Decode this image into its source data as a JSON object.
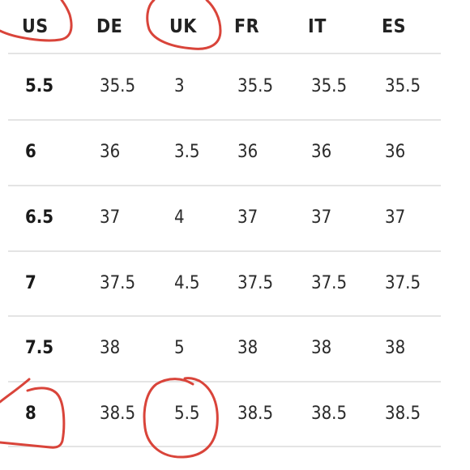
{
  "size_chart": {
    "columns": [
      "US",
      "DE",
      "UK",
      "FR",
      "IT",
      "ES"
    ],
    "rows": [
      [
        "5.5",
        "35.5",
        "3",
        "35.5",
        "35.5",
        "35.5"
      ],
      [
        "6",
        "36",
        "3.5",
        "36",
        "36",
        "36"
      ],
      [
        "6.5",
        "37",
        "4",
        "37",
        "37",
        "37"
      ],
      [
        "7",
        "37.5",
        "4.5",
        "37.5",
        "37.5",
        "37.5"
      ],
      [
        "7.5",
        "38",
        "5",
        "38",
        "38",
        "38"
      ],
      [
        "8",
        "38.5",
        "5.5",
        "38.5",
        "38.5",
        "38.5"
      ]
    ]
  },
  "annotations": {
    "stroke_color": "#d9443a",
    "circled": [
      "US",
      "UK",
      "8",
      "5.5"
    ]
  }
}
